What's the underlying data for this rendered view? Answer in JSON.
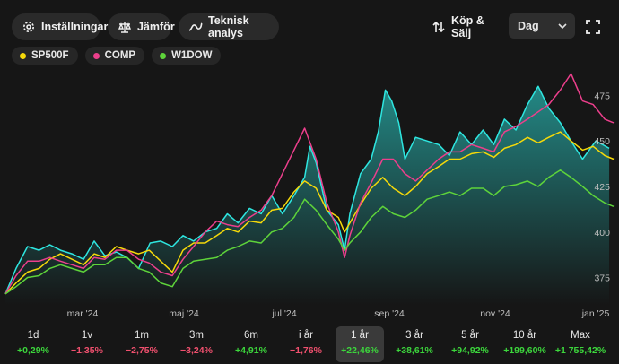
{
  "toolbar": {
    "settings_label": "Inställningar",
    "compare_label": "Jämför",
    "technical_label": "Teknisk analys",
    "trade_label": "Köp & Sälj",
    "interval_value": "Dag"
  },
  "legend": [
    {
      "name": "SP500F",
      "color": "#f5d90a"
    },
    {
      "name": "COMP",
      "color": "#ec3f8c"
    },
    {
      "name": "W1DOW",
      "color": "#5ed43a"
    }
  ],
  "colors": {
    "area": "#2ee6e0",
    "active_period_bg": "#3a3a3a"
  },
  "chart_data": {
    "type": "line",
    "x_labels": [
      "mar '24",
      "maj '24",
      "jul '24",
      "sep '24",
      "nov '24",
      "jan '25"
    ],
    "y_ticks": [
      375,
      400,
      425,
      450,
      475
    ],
    "ylim": [
      360,
      490
    ],
    "series": [
      {
        "name": "",
        "color": "#2ee6e0",
        "area": true,
        "points": [
          [
            0,
            366
          ],
          [
            12,
            380
          ],
          [
            25,
            392
          ],
          [
            38,
            390
          ],
          [
            50,
            393
          ],
          [
            62,
            390
          ],
          [
            75,
            388
          ],
          [
            88,
            385
          ],
          [
            100,
            395
          ],
          [
            112,
            387
          ],
          [
            125,
            389
          ],
          [
            137,
            386
          ],
          [
            150,
            380
          ],
          [
            163,
            394
          ],
          [
            175,
            395
          ],
          [
            188,
            392
          ],
          [
            200,
            398
          ],
          [
            212,
            395
          ],
          [
            225,
            400
          ],
          [
            238,
            402
          ],
          [
            250,
            410
          ],
          [
            262,
            405
          ],
          [
            275,
            413
          ],
          [
            288,
            410
          ],
          [
            300,
            420
          ],
          [
            312,
            410
          ],
          [
            325,
            420
          ],
          [
            337,
            430
          ],
          [
            343,
            447
          ],
          [
            350,
            438
          ],
          [
            362,
            412
          ],
          [
            375,
            404
          ],
          [
            382,
            390
          ],
          [
            388,
            410
          ],
          [
            400,
            432
          ],
          [
            412,
            440
          ],
          [
            420,
            455
          ],
          [
            428,
            478
          ],
          [
            435,
            472
          ],
          [
            443,
            460
          ],
          [
            450,
            440
          ],
          [
            462,
            452
          ],
          [
            475,
            450
          ],
          [
            488,
            448
          ],
          [
            500,
            442
          ],
          [
            512,
            455
          ],
          [
            525,
            448
          ],
          [
            538,
            456
          ],
          [
            550,
            448
          ],
          [
            562,
            462
          ],
          [
            575,
            456
          ],
          [
            588,
            470
          ],
          [
            600,
            480
          ],
          [
            612,
            468
          ],
          [
            625,
            460
          ],
          [
            637,
            450
          ],
          [
            650,
            440
          ],
          [
            665,
            450
          ],
          [
            680,
            446
          ]
        ]
      },
      {
        "name": "SP500F",
        "color": "#f5d90a",
        "points": [
          [
            0,
            366
          ],
          [
            12,
            372
          ],
          [
            25,
            378
          ],
          [
            38,
            380
          ],
          [
            50,
            385
          ],
          [
            62,
            388
          ],
          [
            75,
            385
          ],
          [
            88,
            382
          ],
          [
            100,
            388
          ],
          [
            112,
            386
          ],
          [
            125,
            392
          ],
          [
            137,
            390
          ],
          [
            150,
            388
          ],
          [
            162,
            390
          ],
          [
            175,
            384
          ],
          [
            188,
            378
          ],
          [
            200,
            390
          ],
          [
            212,
            394
          ],
          [
            225,
            394
          ],
          [
            238,
            398
          ],
          [
            250,
            402
          ],
          [
            262,
            400
          ],
          [
            275,
            406
          ],
          [
            288,
            405
          ],
          [
            300,
            412
          ],
          [
            312,
            413
          ],
          [
            325,
            422
          ],
          [
            337,
            428
          ],
          [
            350,
            424
          ],
          [
            362,
            412
          ],
          [
            375,
            408
          ],
          [
            382,
            400
          ],
          [
            388,
            405
          ],
          [
            400,
            415
          ],
          [
            412,
            424
          ],
          [
            425,
            430
          ],
          [
            437,
            424
          ],
          [
            450,
            420
          ],
          [
            462,
            425
          ],
          [
            475,
            432
          ],
          [
            488,
            436
          ],
          [
            500,
            440
          ],
          [
            512,
            440
          ],
          [
            525,
            443
          ],
          [
            538,
            444
          ],
          [
            550,
            441
          ],
          [
            562,
            446
          ],
          [
            575,
            448
          ],
          [
            588,
            452
          ],
          [
            600,
            449
          ],
          [
            612,
            452
          ],
          [
            625,
            455
          ],
          [
            637,
            450
          ],
          [
            650,
            445
          ],
          [
            662,
            447
          ],
          [
            675,
            442
          ],
          [
            685,
            440
          ]
        ]
      },
      {
        "name": "COMP",
        "color": "#ec3f8c",
        "points": [
          [
            0,
            366
          ],
          [
            12,
            376
          ],
          [
            25,
            384
          ],
          [
            38,
            384
          ],
          [
            50,
            386
          ],
          [
            62,
            384
          ],
          [
            75,
            382
          ],
          [
            88,
            380
          ],
          [
            100,
            386
          ],
          [
            112,
            385
          ],
          [
            125,
            390
          ],
          [
            137,
            390
          ],
          [
            150,
            385
          ],
          [
            162,
            383
          ],
          [
            175,
            378
          ],
          [
            188,
            376
          ],
          [
            200,
            385
          ],
          [
            212,
            392
          ],
          [
            225,
            400
          ],
          [
            238,
            406
          ],
          [
            250,
            404
          ],
          [
            262,
            403
          ],
          [
            275,
            408
          ],
          [
            288,
            412
          ],
          [
            300,
            420
          ],
          [
            312,
            432
          ],
          [
            325,
            445
          ],
          [
            337,
            457
          ],
          [
            350,
            440
          ],
          [
            362,
            416
          ],
          [
            375,
            400
          ],
          [
            382,
            386
          ],
          [
            388,
            398
          ],
          [
            400,
            416
          ],
          [
            412,
            427
          ],
          [
            425,
            440
          ],
          [
            437,
            440
          ],
          [
            450,
            432
          ],
          [
            462,
            428
          ],
          [
            475,
            434
          ],
          [
            488,
            440
          ],
          [
            500,
            444
          ],
          [
            512,
            444
          ],
          [
            525,
            448
          ],
          [
            538,
            446
          ],
          [
            550,
            444
          ],
          [
            562,
            455
          ],
          [
            575,
            458
          ],
          [
            588,
            462
          ],
          [
            600,
            466
          ],
          [
            612,
            470
          ],
          [
            625,
            478
          ],
          [
            637,
            487
          ],
          [
            650,
            472
          ],
          [
            662,
            470
          ],
          [
            675,
            462
          ],
          [
            685,
            460
          ]
        ]
      },
      {
        "name": "W1DOW",
        "color": "#5ed43a",
        "points": [
          [
            0,
            366
          ],
          [
            12,
            370
          ],
          [
            25,
            375
          ],
          [
            38,
            376
          ],
          [
            50,
            380
          ],
          [
            62,
            382
          ],
          [
            75,
            380
          ],
          [
            88,
            378
          ],
          [
            100,
            382
          ],
          [
            112,
            382
          ],
          [
            125,
            386
          ],
          [
            137,
            386
          ],
          [
            150,
            380
          ],
          [
            162,
            378
          ],
          [
            175,
            372
          ],
          [
            188,
            370
          ],
          [
            200,
            380
          ],
          [
            212,
            384
          ],
          [
            225,
            385
          ],
          [
            238,
            386
          ],
          [
            250,
            390
          ],
          [
            262,
            392
          ],
          [
            275,
            395
          ],
          [
            288,
            394
          ],
          [
            300,
            400
          ],
          [
            312,
            402
          ],
          [
            325,
            408
          ],
          [
            337,
            418
          ],
          [
            350,
            412
          ],
          [
            362,
            404
          ],
          [
            375,
            396
          ],
          [
            382,
            390
          ],
          [
            388,
            394
          ],
          [
            400,
            400
          ],
          [
            412,
            408
          ],
          [
            425,
            414
          ],
          [
            437,
            410
          ],
          [
            450,
            408
          ],
          [
            462,
            412
          ],
          [
            475,
            418
          ],
          [
            488,
            420
          ],
          [
            500,
            422
          ],
          [
            512,
            420
          ],
          [
            525,
            424
          ],
          [
            538,
            424
          ],
          [
            550,
            420
          ],
          [
            562,
            425
          ],
          [
            575,
            426
          ],
          [
            588,
            428
          ],
          [
            600,
            425
          ],
          [
            612,
            430
          ],
          [
            625,
            434
          ],
          [
            637,
            430
          ],
          [
            650,
            425
          ],
          [
            662,
            420
          ],
          [
            675,
            416
          ],
          [
            685,
            414
          ]
        ]
      }
    ]
  },
  "periods": [
    {
      "label": "1d",
      "change": "+0,29%",
      "dir": "pos"
    },
    {
      "label": "1v",
      "change": "−1,35%",
      "dir": "neg"
    },
    {
      "label": "1m",
      "change": "−2,75%",
      "dir": "neg"
    },
    {
      "label": "3m",
      "change": "−3,24%",
      "dir": "neg"
    },
    {
      "label": "6m",
      "change": "+4,91%",
      "dir": "pos"
    },
    {
      "label": "i år",
      "change": "−1,76%",
      "dir": "neg"
    },
    {
      "label": "1 år",
      "change": "+22,46%",
      "dir": "pos",
      "active": true
    },
    {
      "label": "3 år",
      "change": "+38,61%",
      "dir": "pos"
    },
    {
      "label": "5 år",
      "change": "+94,92%",
      "dir": "pos"
    },
    {
      "label": "10 år",
      "change": "+199,60%",
      "dir": "pos"
    },
    {
      "label": "Max",
      "change": "+1 755,42%",
      "dir": "pos"
    }
  ]
}
